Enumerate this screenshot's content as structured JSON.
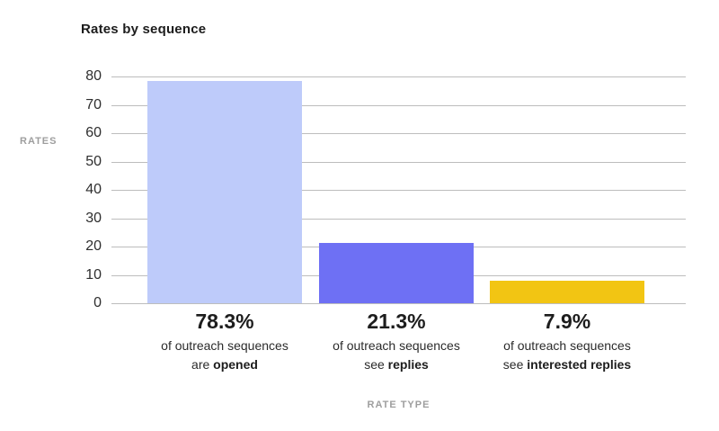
{
  "chart_data": {
    "type": "bar",
    "title": "Rates by sequence",
    "xlabel": "RATE TYPE",
    "ylabel": "RATES",
    "ylim": [
      0,
      80
    ],
    "yticks": [
      0,
      10,
      20,
      30,
      40,
      50,
      60,
      70,
      80
    ],
    "grid": true,
    "legend_position": "none",
    "categories": [
      "are opened",
      "see replies",
      "see interested replies"
    ],
    "values": [
      78.3,
      21.3,
      7.9
    ],
    "bars": [
      {
        "value": 78.3,
        "pct_label": "78.3%",
        "caption_line": "of outreach sequences",
        "caption_prefix": "are ",
        "caption_bold": "opened",
        "color": "#becbfa"
      },
      {
        "value": 21.3,
        "pct_label": "21.3%",
        "caption_line": "of outreach sequences",
        "caption_prefix": "see ",
        "caption_bold": "replies",
        "color": "#6e70f4"
      },
      {
        "value": 7.9,
        "pct_label": "7.9%",
        "caption_line": "of outreach sequences",
        "caption_prefix": "see ",
        "caption_bold": "interested replies",
        "color": "#f2c513"
      }
    ],
    "colors": {
      "background": "#ffffff",
      "title": "#1c1c1c",
      "grid": "#bdbdbd",
      "tick_label": "#2e2e2e",
      "axis_title": "#9e9e9e"
    }
  }
}
